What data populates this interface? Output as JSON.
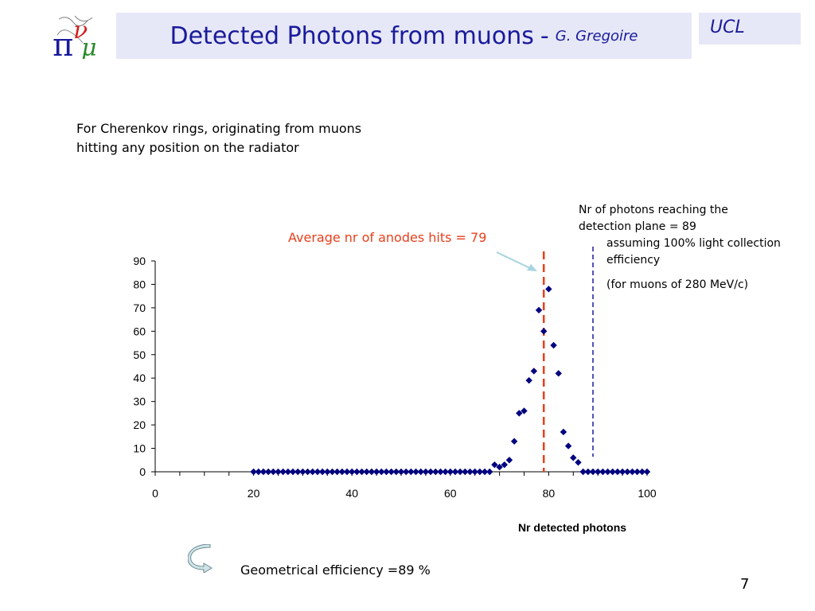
{
  "header": {
    "title": "Detected Photons from muons",
    "separator": "-",
    "author": "G. Gregoire",
    "institution": "UCL"
  },
  "text": {
    "description_line1": "For Cherenkov rings, originating from muons",
    "description_line2": "hitting any position on the radiator",
    "note_reaching": "Nr of photons reaching the detection plane = 89",
    "note_assuming": "assuming 100% light collection efficiency",
    "note_muons": "(for muons of 280 MeV/c)",
    "average_label": "Average nr of anodes hits = 79",
    "geometrical_efficiency": "Geometrical efficiency =89 %",
    "page_number": "7"
  },
  "icons": {
    "logo": "pi-nu-mu-logo-icon",
    "return": "curved-arrow-icon"
  },
  "colors": {
    "title": "#1a1a9c",
    "header_bg": "#e6e8f7",
    "points": "#00007f",
    "average_line": "#e8401c",
    "reaching_line": "#1a1a9c",
    "annotation_arrow": "#a8d4e0"
  },
  "chart_data": {
    "type": "scatter",
    "title": "",
    "xlabel": "Nr detected photons",
    "ylabel": "",
    "xlim": [
      0,
      100
    ],
    "ylim": [
      0,
      90
    ],
    "x_ticks": [
      0,
      20,
      40,
      60,
      80,
      100
    ],
    "y_ticks": [
      0,
      10,
      20,
      30,
      40,
      50,
      60,
      70,
      80,
      90
    ],
    "grid": false,
    "legend": "none",
    "vertical_lines": [
      {
        "x": 79,
        "style": "dashed",
        "color": "#e8401c"
      },
      {
        "x": 89,
        "style": "dashed",
        "color": "#1a1a9c"
      }
    ],
    "series": [
      {
        "x": [
          20,
          21,
          22,
          23,
          24,
          25,
          26,
          27,
          28,
          29,
          30,
          31,
          32,
          33,
          34,
          35,
          36,
          37,
          38,
          39,
          40,
          41,
          42,
          43,
          44,
          45,
          46,
          47,
          48,
          49,
          50,
          51,
          52,
          53,
          54,
          55,
          56,
          57,
          58,
          59,
          60,
          61,
          62,
          63,
          64,
          65,
          66,
          67,
          68,
          69,
          70,
          71,
          72,
          73,
          74,
          75,
          76,
          77,
          78,
          79,
          80,
          81,
          82,
          83,
          84,
          85,
          86,
          87,
          88,
          89,
          90,
          91,
          92,
          93,
          94,
          95,
          96,
          97,
          98,
          99,
          100
        ],
        "y": [
          0,
          0,
          0,
          0,
          0,
          0,
          0,
          0,
          0,
          0,
          0,
          0,
          0,
          0,
          0,
          0,
          0,
          0,
          0,
          0,
          0,
          0,
          0,
          0,
          0,
          0,
          0,
          0,
          0,
          0,
          0,
          0,
          0,
          0,
          0,
          0,
          0,
          0,
          0,
          0,
          0,
          0,
          0,
          0,
          0,
          0,
          0,
          0,
          0,
          3,
          2,
          3,
          5,
          13,
          25,
          26,
          39,
          43,
          69,
          60,
          78,
          54,
          42,
          17,
          11,
          6,
          4,
          0,
          0,
          0,
          0,
          0,
          0,
          0,
          0,
          0,
          0,
          0,
          0,
          0,
          0
        ]
      }
    ]
  }
}
